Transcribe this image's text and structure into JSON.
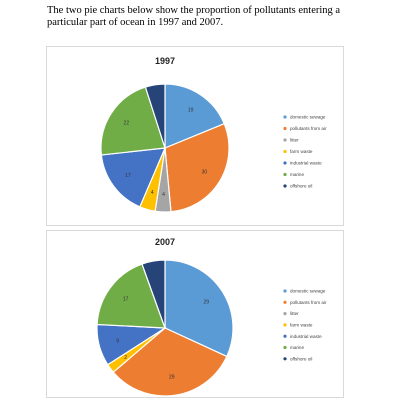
{
  "intro_text": "The two pie charts below show the proportion of pollutants entering a particular part of ocean in 1997 and 2007.",
  "chart_data": [
    {
      "type": "pie",
      "title": "1997",
      "categories": [
        "domestic sewage",
        "pollutants from air",
        "litter",
        "farm waste",
        "industrial waste",
        "marine",
        "offshore oil"
      ],
      "values": [
        19,
        30,
        4,
        4,
        17,
        22,
        5
      ],
      "labels": [
        "19",
        "30",
        "4",
        "4",
        "17",
        "22",
        ""
      ],
      "colors": [
        "#5b9bd5",
        "#ed7d31",
        "#a5a5a5",
        "#ffc000",
        "#4472c4",
        "#70ad47",
        "#264478"
      ],
      "legend_position": "right"
    },
    {
      "type": "pie",
      "title": "2007",
      "categories": [
        "domestic sewage",
        "pollutants from air",
        "litter",
        "farm waste",
        "industrial waste",
        "marine",
        "offshore oil"
      ],
      "values": [
        29,
        29,
        0,
        2,
        9,
        17,
        5
      ],
      "labels": [
        "29",
        "29",
        "",
        "2",
        "9",
        "17",
        ""
      ],
      "colors": [
        "#5b9bd5",
        "#ed7d31",
        "#a5a5a5",
        "#ffc000",
        "#4472c4",
        "#70ad47",
        "#264478"
      ],
      "legend_position": "right"
    }
  ]
}
